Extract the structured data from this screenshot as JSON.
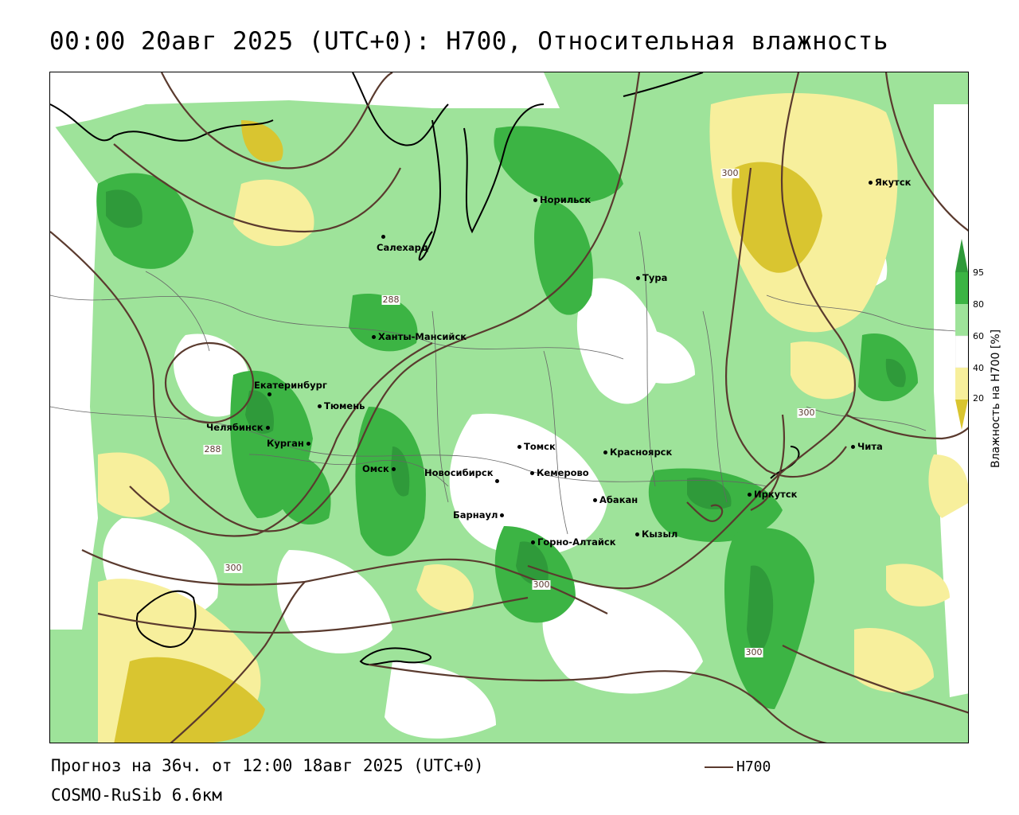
{
  "header": {
    "title": "00:00 20авг 2025 (UTC+0): H700, Относительная влажность"
  },
  "footer": {
    "forecast": "Прогноз на 36ч. от 12:00 18авг 2025 (UTC+0)",
    "model": "COSMO-RuSib 6.6км",
    "legend_line_label": "H700",
    "legend_line_color": "#5a3a2e"
  },
  "colorbar": {
    "title": "Влажность на H700 [%]",
    "ticks": [
      "95",
      "80",
      "60",
      "40",
      "20"
    ],
    "colors": {
      "above_95": "#2f9a3a",
      "80_95": "#3cb444",
      "60_80": "#9ee39a",
      "40_60": "#ffffff",
      "20_40": "#f7ef9c",
      "below_20": "#d9c530"
    }
  },
  "cities": [
    {
      "name": "Норильск"
    },
    {
      "name": "Якутск"
    },
    {
      "name": "Салехард"
    },
    {
      "name": "Тура"
    },
    {
      "name": "Ханты-Мансийск"
    },
    {
      "name": "Екатеринбург"
    },
    {
      "name": "Тюмень"
    },
    {
      "name": "Челябинск"
    },
    {
      "name": "Курган"
    },
    {
      "name": "Омск"
    },
    {
      "name": "Новосибирск"
    },
    {
      "name": "Томск"
    },
    {
      "name": "Кемерово"
    },
    {
      "name": "Красноярск"
    },
    {
      "name": "Абакан"
    },
    {
      "name": "Барнаул"
    },
    {
      "name": "Горно-Алтайск"
    },
    {
      "name": "Кызыл"
    },
    {
      "name": "Иркутск"
    },
    {
      "name": "Чита"
    }
  ],
  "contour_labels": [
    "288",
    "288",
    "300",
    "300",
    "300",
    "300",
    "300"
  ]
}
